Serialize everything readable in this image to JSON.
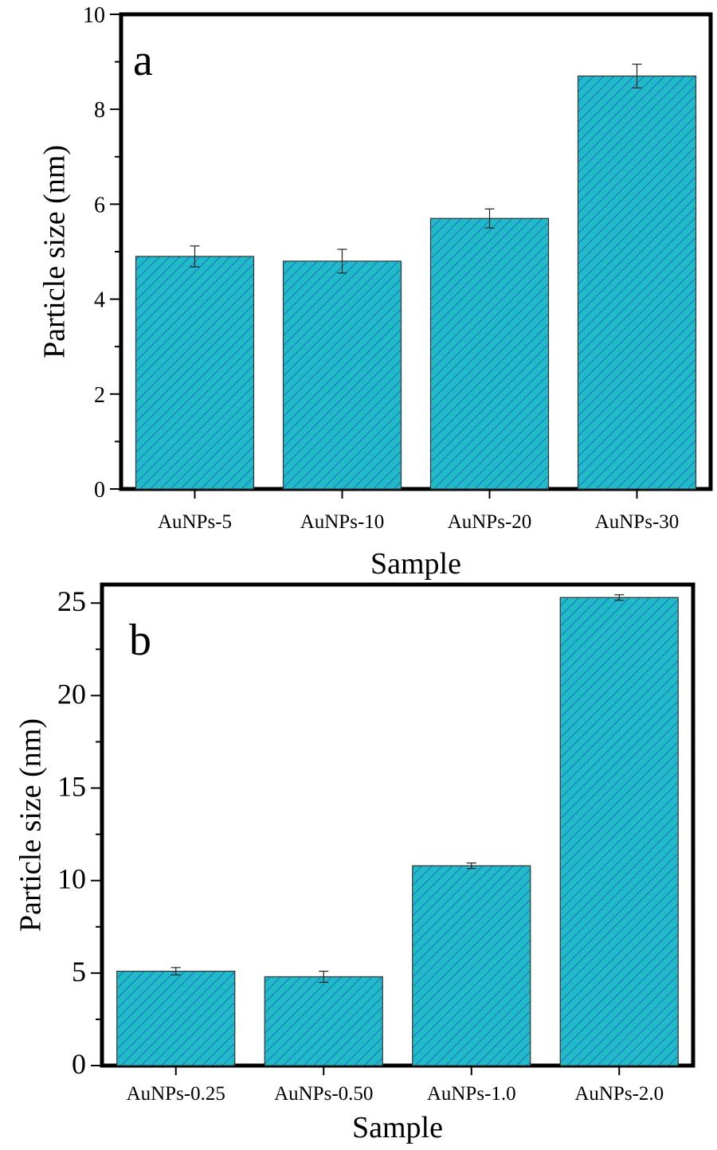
{
  "chart_data": [
    {
      "type": "bar",
      "panel_label": "a",
      "xlabel": "Sample",
      "ylabel": "Particle size (nm)",
      "categories": [
        "AuNPs-5",
        "AuNPs-10",
        "AuNPs-20",
        "AuNPs-30"
      ],
      "values": [
        4.9,
        4.8,
        5.7,
        8.7
      ],
      "errors": [
        0.22,
        0.25,
        0.2,
        0.25
      ],
      "ylim": [
        0,
        10
      ],
      "yticks": [
        0,
        2,
        4,
        6,
        8,
        10
      ],
      "grid": false,
      "bar_color": "#1fbcc6",
      "hatch_color": "#2b4fd6"
    },
    {
      "type": "bar",
      "panel_label": "b",
      "xlabel": "Sample",
      "ylabel": "Particle size (nm)",
      "categories": [
        "AuNPs-0.25",
        "AuNPs-0.50",
        "AuNPs-1.0",
        "AuNPs-2.0"
      ],
      "values": [
        5.1,
        4.8,
        10.8,
        25.3
      ],
      "errors": [
        0.2,
        0.3,
        0.15,
        0.15
      ],
      "ylim": [
        0,
        26
      ],
      "yticks": [
        0,
        5,
        10,
        15,
        20,
        25
      ],
      "grid": false,
      "bar_color": "#1fbcc6",
      "hatch_color": "#2b4fd6"
    }
  ]
}
